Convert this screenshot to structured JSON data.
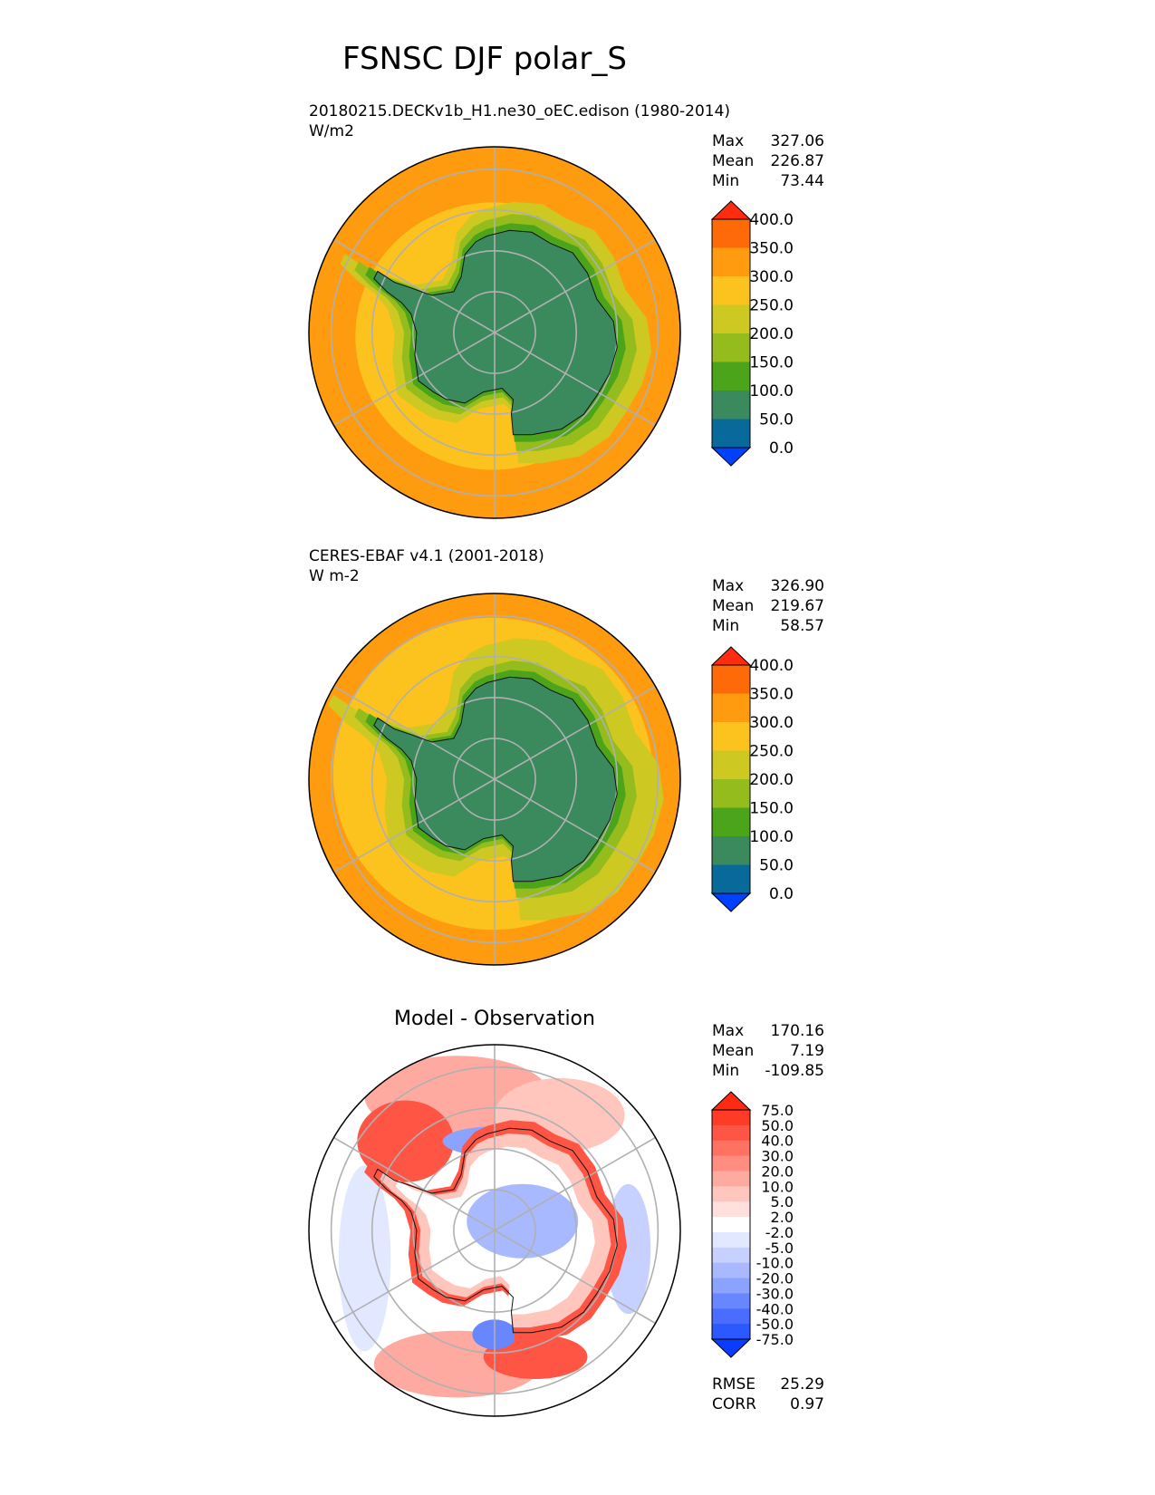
{
  "figure_title": "FSNSC DJF polar_S",
  "colors": {
    "ocean_warm": "#FF9B0E",
    "land_green": "#3A8A5E",
    "grid": "#b0b0b0",
    "coast": "#111111"
  },
  "chart_data": [
    {
      "type": "heatmap",
      "id": "test",
      "title": "",
      "subtitle_lines": [
        "20180215.DECKv1b_H1.ne30_oEC.edison (1980-2014)",
        "W/m2"
      ],
      "stats": [
        {
          "label": "Max",
          "value": "327.06"
        },
        {
          "label": "Mean",
          "value": "226.87"
        },
        {
          "label": "Min",
          "value": "73.44"
        }
      ],
      "colorbar": {
        "levels": [
          "0.0",
          "50.0",
          "100.0",
          "150.0",
          "200.0",
          "250.0",
          "300.0",
          "350.0",
          "400.0"
        ],
        "colors": [
          "#0040FF",
          "#086A9A",
          "#3A8A5E",
          "#4CA41A",
          "#94BC1C",
          "#CDC822",
          "#FCC21E",
          "#FF9B0E",
          "#FF6A08",
          "#FF2C10"
        ],
        "extend": "both"
      },
      "projection": "south polar stereographic",
      "grid": true
    },
    {
      "type": "heatmap",
      "id": "reference",
      "title": "",
      "subtitle_lines": [
        "CERES-EBAF v4.1 (2001-2018)",
        "W m-2"
      ],
      "stats": [
        {
          "label": "Max",
          "value": "326.90"
        },
        {
          "label": "Mean",
          "value": "219.67"
        },
        {
          "label": "Min",
          "value": "58.57"
        }
      ],
      "colorbar": {
        "levels": [
          "0.0",
          "50.0",
          "100.0",
          "150.0",
          "200.0",
          "250.0",
          "300.0",
          "350.0",
          "400.0"
        ],
        "colors": [
          "#0040FF",
          "#086A9A",
          "#3A8A5E",
          "#4CA41A",
          "#94BC1C",
          "#CDC822",
          "#FCC21E",
          "#FF9B0E",
          "#FF6A08",
          "#FF2C10"
        ],
        "extend": "both"
      },
      "projection": "south polar stereographic",
      "grid": true
    },
    {
      "type": "heatmap",
      "id": "difference",
      "title": "Model - Observation",
      "subtitle_lines": [],
      "stats": [
        {
          "label": "Max",
          "value": "170.16"
        },
        {
          "label": "Mean",
          "value": "7.19"
        },
        {
          "label": "Min",
          "value": "-109.85"
        }
      ],
      "extra_stats": [
        {
          "label": "RMSE",
          "value": "25.29"
        },
        {
          "label": "CORR",
          "value": "0.97"
        }
      ],
      "colorbar": {
        "levels": [
          "-75.0",
          "-50.0",
          "-40.0",
          "-30.0",
          "-20.0",
          "-10.0",
          "-5.0",
          "-2.0",
          "2.0",
          "5.0",
          "10.0",
          "20.0",
          "30.0",
          "40.0",
          "50.0",
          "75.0"
        ],
        "colors": [
          "#0A3CFF",
          "#2B58FF",
          "#4A6DFF",
          "#6887FF",
          "#8CA2FF",
          "#A9B9FF",
          "#C6D1FF",
          "#E2E8FF",
          "#FFFFFF",
          "#FFE0DC",
          "#FFC6BE",
          "#FFAAA0",
          "#FF8E80",
          "#FF7262",
          "#FF5544",
          "#FF3A26",
          "#FF2A12"
        ],
        "extend": "both"
      },
      "projection": "south polar stereographic",
      "grid": true
    }
  ]
}
